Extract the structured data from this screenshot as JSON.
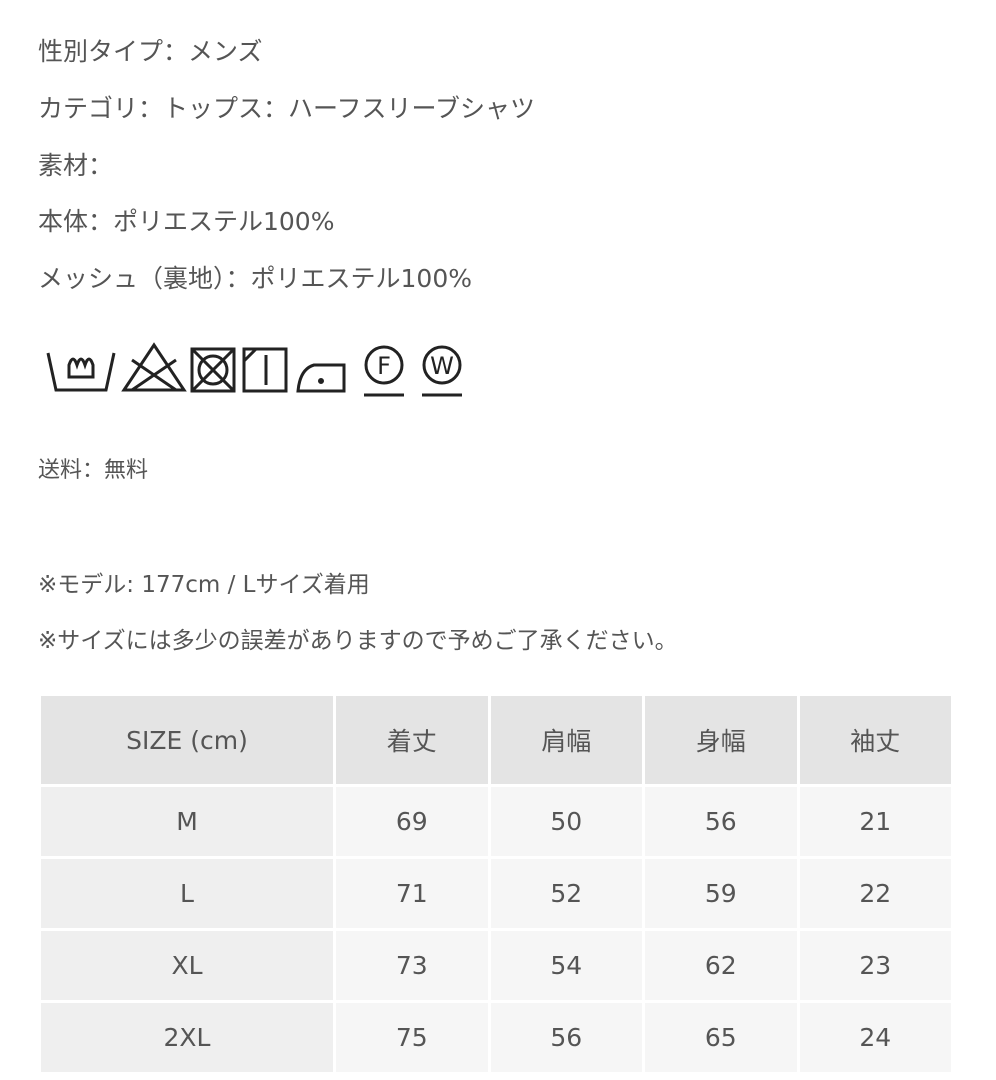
{
  "lines": [
    "性別タイプ：メンズ",
    "カテゴリ：トップス：ハーフスリーブシャツ",
    "素材：",
    "本体：ポリエステル100%",
    "メッシュ（裏地）：ポリエステル100%"
  ],
  "care_icons": [
    "F",
    "W"
  ],
  "shipping": "送料：無料",
  "notes": [
    "※モデル: 177cm / Lサイズ着用",
    "※サイズには多少の誤差がありますので予めご了承ください。"
  ],
  "table": {
    "header": [
      "SIZE (cm)",
      "着丈",
      "肩幅",
      "身幅",
      "袖丈"
    ],
    "rows": [
      [
        "M",
        69,
        50,
        56,
        21
      ],
      [
        "L",
        71,
        52,
        59,
        22
      ],
      [
        "XL",
        73,
        54,
        62,
        23
      ],
      [
        "2XL",
        75,
        56,
        65,
        24
      ]
    ]
  }
}
